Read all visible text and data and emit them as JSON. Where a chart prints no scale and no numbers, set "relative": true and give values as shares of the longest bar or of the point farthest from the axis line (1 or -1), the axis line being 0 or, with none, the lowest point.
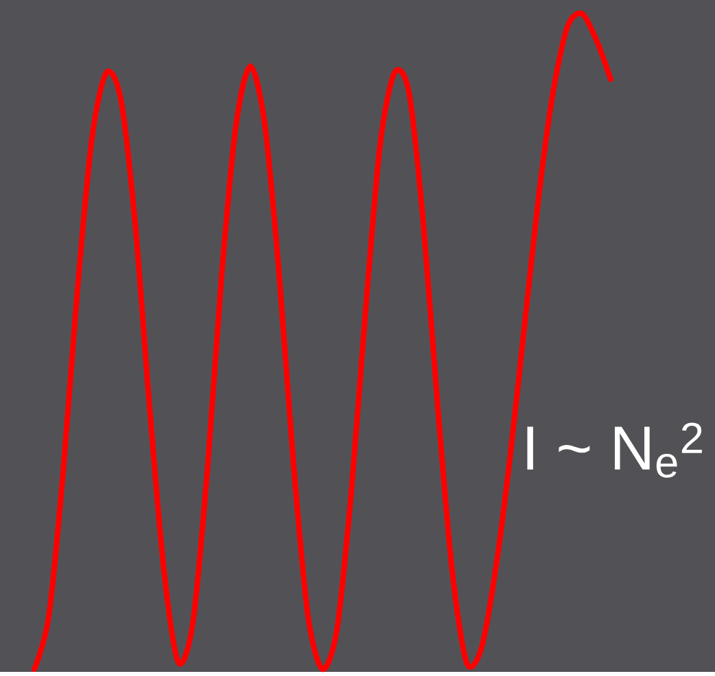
{
  "chart_data": {
    "type": "line",
    "relative": true,
    "categories": [
      null,
      null,
      null,
      null,
      null,
      null,
      null,
      null,
      null,
      null,
      null,
      null,
      null,
      null,
      null,
      null,
      null,
      null,
      null,
      null,
      null,
      null,
      null,
      null,
      null,
      null,
      null,
      null,
      null,
      null,
      null,
      null,
      null,
      null,
      null,
      null,
      null,
      null,
      null,
      null,
      null
    ],
    "series": [
      {
        "color": "#ff0000",
        "values": [
          0,
          0.08,
          0.3,
          0.58,
          0.81,
          0.91,
          0.87,
          0.68,
          0.4,
          0.15,
          0.01,
          0.07,
          0.3,
          0.6,
          0.83,
          0.92,
          0.83,
          0.6,
          0.31,
          0.08,
          0,
          0.06,
          0.27,
          0.55,
          0.8,
          0.91,
          0.88,
          0.68,
          0.4,
          0.15,
          0.01,
          0.03,
          0.15,
          0.32,
          0.52,
          0.72,
          0.88,
          0.98,
          1,
          0.96,
          0.9
        ]
      }
    ],
    "annotations": [
      "I ~ N$_{e}$$^{2}$"
    ],
    "marker": "none",
    "line_style": "solid"
  }
}
